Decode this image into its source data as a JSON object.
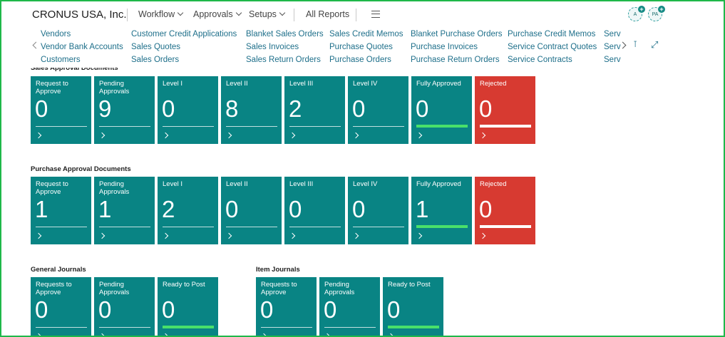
{
  "header": {
    "company": "CRONUS USA, Inc.",
    "menus": [
      "Workflow",
      "Approvals",
      "Setups"
    ],
    "all_reports": "All Reports",
    "avatars": [
      "A",
      "PA"
    ]
  },
  "nav": {
    "col1": [
      "Vendors",
      "Vendor Bank Accounts",
      "Customers"
    ],
    "col2": [
      "Customer Credit Applications",
      "Sales Quotes",
      "Sales Orders"
    ],
    "col3": [
      "Blanket Sales Orders",
      "Sales Invoices",
      "Sales Return Orders"
    ],
    "col4": [
      "Sales Credit Memos",
      "Purchase Quotes",
      "Purchase Orders"
    ],
    "col5": [
      "Blanket Purchase Orders",
      "Purchase Invoices",
      "Purchase Return Orders"
    ],
    "col6": [
      "Purchase Credit Memos",
      "Service Contract Quotes",
      "Service Contracts"
    ],
    "col7": [
      "Serv",
      "Serv",
      "Serv"
    ]
  },
  "sections": {
    "sales": {
      "title": "Sales Approval Documents",
      "tiles": [
        {
          "label": "Request to Approve",
          "value": "0"
        },
        {
          "label": "Pending Approvals",
          "value": "9"
        },
        {
          "label": "Level I",
          "value": "0"
        },
        {
          "label": "Level II",
          "value": "8"
        },
        {
          "label": "Level III",
          "value": "2"
        },
        {
          "label": "Level IV",
          "value": "0"
        },
        {
          "label": "Fully Approved",
          "value": "0"
        },
        {
          "label": "Rejected",
          "value": "0"
        }
      ]
    },
    "purchase": {
      "title": "Purchase Approval Documents",
      "tiles": [
        {
          "label": "Request to Approve",
          "value": "1"
        },
        {
          "label": "Pending Approvals",
          "value": "1"
        },
        {
          "label": "Level I",
          "value": "2"
        },
        {
          "label": "Level II",
          "value": "0"
        },
        {
          "label": "Level III",
          "value": "0"
        },
        {
          "label": "Level IV",
          "value": "0"
        },
        {
          "label": "Fully Approved",
          "value": "1"
        },
        {
          "label": "Rejected",
          "value": "0"
        }
      ]
    },
    "general": {
      "title": "General Journals",
      "tiles": [
        {
          "label": "Requests to Approve",
          "value": "0"
        },
        {
          "label": "Pending Approvals",
          "value": "0"
        },
        {
          "label": "Ready to Post",
          "value": "0"
        }
      ]
    },
    "item": {
      "title": "Item Journals",
      "tiles": [
        {
          "label": "Requests to Approve",
          "value": "0"
        },
        {
          "label": "Pending Approvals",
          "value": "0"
        },
        {
          "label": "Ready to Post",
          "value": "0"
        }
      ]
    }
  },
  "colors": {
    "tile_teal": "#098484",
    "tile_red": "#d73a31",
    "indicator_green": "#49e06a",
    "link_blue": "#1e6f8a"
  },
  "icons": [
    "chevron-left-icon",
    "chevron-right-icon",
    "pin-icon",
    "expand-icon",
    "hamburger-menu-icon"
  ]
}
